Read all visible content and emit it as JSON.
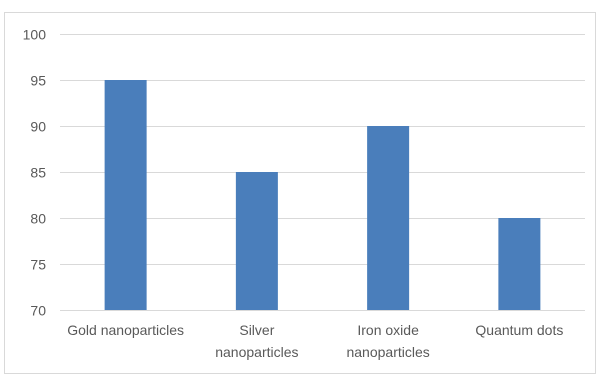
{
  "chart_data": {
    "type": "bar",
    "title": "",
    "xlabel": "",
    "ylabel": "",
    "categories": [
      [
        "Gold nanoparticles"
      ],
      [
        "Silver",
        "nanoparticles"
      ],
      [
        "Iron oxide",
        "nanoparticles"
      ],
      [
        "Quantum dots"
      ]
    ],
    "values": [
      95,
      85,
      90,
      80
    ],
    "ylim": [
      70,
      100
    ],
    "yticks": [
      70,
      75,
      80,
      85,
      90,
      95,
      100
    ],
    "grid": true,
    "legend": "none",
    "colors": {
      "bar": "#4a7ebb",
      "grid": "#d9d9d9",
      "text": "#595959"
    }
  }
}
